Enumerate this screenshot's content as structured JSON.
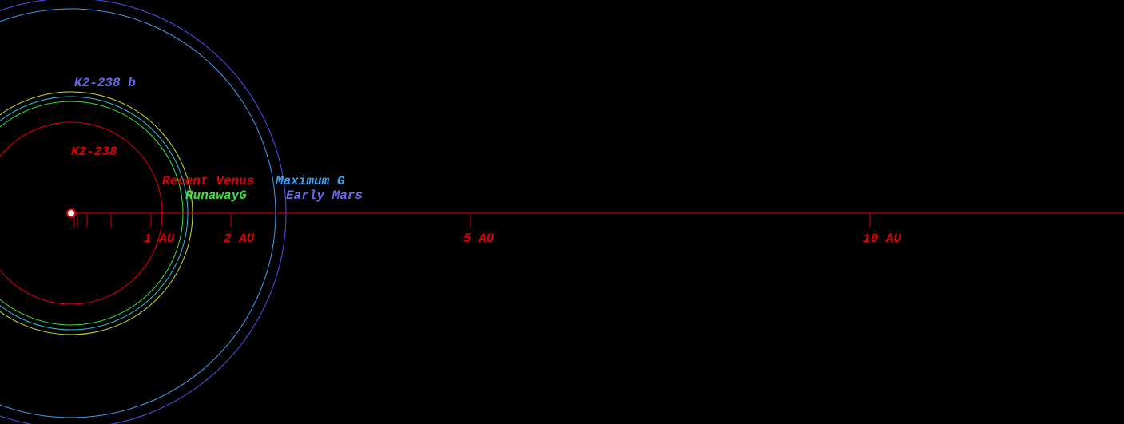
{
  "labels": {
    "planet": "K2-238 b",
    "star": "K2-238",
    "recent_venus": "Recent Venus",
    "maximum_greenhouse": "Maximum G",
    "runaway_greenhouse": "RunawayG",
    "early_mars": "Early Mars"
  },
  "scale": [
    "1 AU",
    "2 AU",
    "5 AU",
    "10 AU"
  ]
}
